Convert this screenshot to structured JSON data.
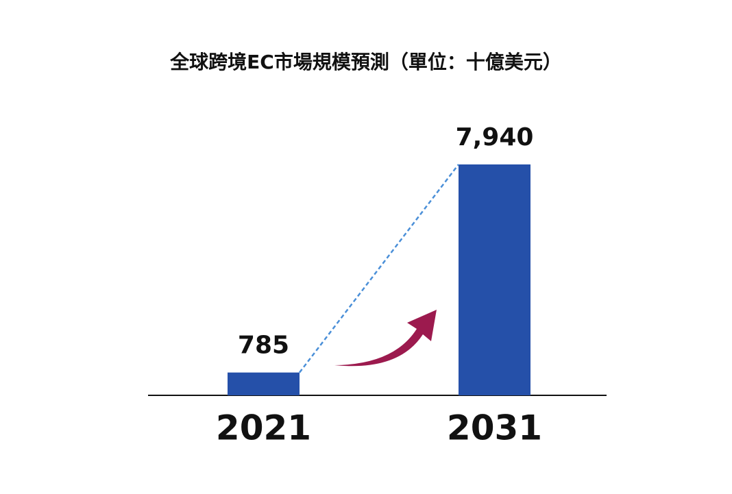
{
  "chart_data": {
    "type": "bar",
    "title": "全球跨境EC市場規模預測（單位：十億美元）",
    "categories": [
      "2021",
      "2031"
    ],
    "values": [
      785,
      7940
    ],
    "value_labels": [
      "785",
      "7,940"
    ],
    "color": "#2550a9"
  }
}
